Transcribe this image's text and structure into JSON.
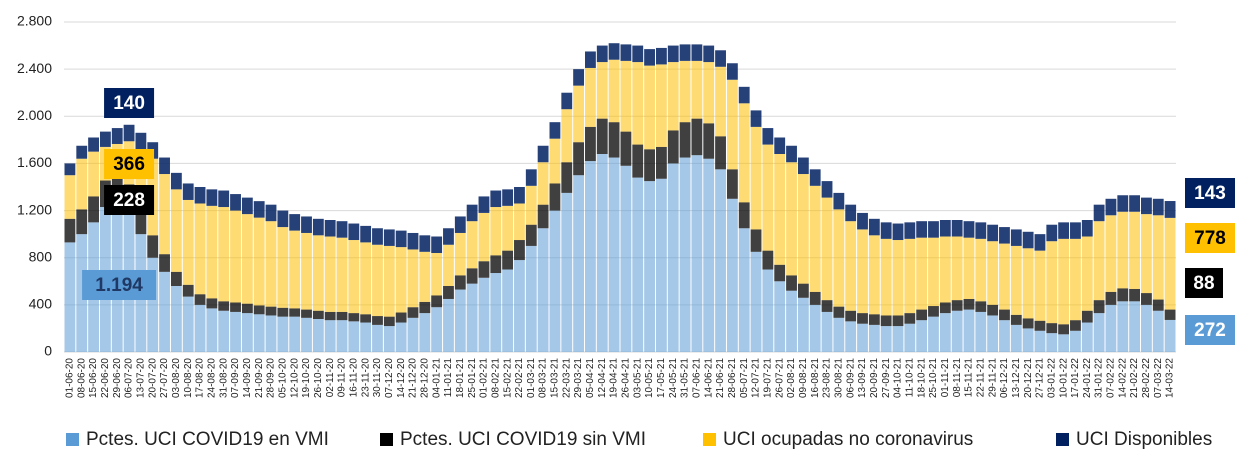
{
  "chart_data": {
    "type": "stacked-bar",
    "categories": [
      "01-06-20",
      "08-06-20",
      "15-06-20",
      "22-06-20",
      "29-06-20",
      "06-07-20",
      "13-07-20",
      "20-07-20",
      "27-07-20",
      "03-08-20",
      "10-08-20",
      "17-08-20",
      "24-08-20",
      "31-08-20",
      "07-09-20",
      "14-09-20",
      "21-09-20",
      "28-09-20",
      "05-10-20",
      "12-10-20",
      "19-10-20",
      "26-10-20",
      "02-11-20",
      "09-11-20",
      "16-11-20",
      "23-11-20",
      "30-11-20",
      "07-12-20",
      "14-12-20",
      "21-12-20",
      "28-12-20",
      "04-01-21",
      "11-01-21",
      "18-01-21",
      "25-01-21",
      "01-02-21",
      "08-02-21",
      "15-02-21",
      "22-02-21",
      "01-03-21",
      "08-03-21",
      "15-03-21",
      "22-03-21",
      "29-03-21",
      "05-04-21",
      "12-04-21",
      "19-04-21",
      "26-04-21",
      "03-05-21",
      "10-05-21",
      "17-05-21",
      "24-05-21",
      "31-05-21",
      "07-06-21",
      "14-06-21",
      "21-06-21",
      "28-06-21",
      "05-07-21",
      "12-07-21",
      "19-07-21",
      "26-07-21",
      "02-08-21",
      "09-08-21",
      "16-08-21",
      "23-08-21",
      "30-08-21",
      "06-09-21",
      "13-09-21",
      "20-09-21",
      "27-09-21",
      "04-10-21",
      "11-10-21",
      "18-10-21",
      "25-10-21",
      "01-11-21",
      "08-11-21",
      "15-11-21",
      "22-11-21",
      "29-11-21",
      "06-12-21",
      "13-12-21",
      "20-12-21",
      "27-12-21",
      "03-01-22",
      "10-01-22",
      "17-01-22",
      "24-01-22",
      "31-01-22",
      "07-02-22",
      "14-02-22",
      "21-02-22",
      "28-02-22",
      "07-03-22",
      "14-03-22"
    ],
    "series": [
      {
        "name": "Pctes. UCI COVID19 en VMI",
        "color": "#5b9bd5",
        "values": [
          930,
          1000,
          1100,
          1230,
          1280,
          1194,
          1000,
          800,
          680,
          560,
          470,
          400,
          370,
          350,
          340,
          330,
          320,
          310,
          300,
          300,
          290,
          280,
          270,
          270,
          260,
          250,
          230,
          220,
          250,
          290,
          330,
          380,
          450,
          530,
          580,
          630,
          670,
          700,
          780,
          900,
          1050,
          1200,
          1350,
          1500,
          1620,
          1680,
          1650,
          1580,
          1480,
          1450,
          1470,
          1600,
          1650,
          1670,
          1640,
          1550,
          1300,
          1050,
          850,
          700,
          600,
          520,
          460,
          400,
          340,
          290,
          260,
          240,
          230,
          220,
          220,
          240,
          270,
          300,
          330,
          350,
          360,
          340,
          310,
          270,
          230,
          200,
          180,
          160,
          150,
          180,
          250,
          330,
          400,
          430,
          430,
          400,
          350,
          272
        ],
        "value_labels": [
          null,
          null,
          null,
          null,
          null,
          "1.194",
          null,
          null,
          null,
          null,
          null,
          null,
          null,
          null,
          null,
          null,
          null,
          null,
          null,
          null,
          null,
          null,
          null,
          null,
          null,
          null,
          null,
          null,
          null,
          null,
          null,
          null,
          null,
          null,
          null,
          null,
          null,
          null,
          null,
          null,
          null,
          null,
          null,
          null,
          null,
          null,
          null,
          null,
          null,
          null,
          null,
          null,
          null,
          null,
          null,
          null,
          null,
          null,
          null,
          null,
          null,
          null,
          null,
          null,
          null,
          null,
          null,
          null,
          null,
          null,
          null,
          null,
          null,
          null,
          null,
          null,
          null,
          null,
          null,
          null,
          null,
          null,
          null,
          null,
          null,
          null,
          null,
          null,
          null,
          null,
          null,
          null,
          null,
          "272"
        ]
      },
      {
        "name": "Pctes. UCI COVID19 sin VMI",
        "color": "#000000",
        "values": [
          200,
          210,
          220,
          225,
          230,
          228,
          210,
          190,
          150,
          120,
          100,
          90,
          85,
          80,
          80,
          80,
          75,
          75,
          75,
          70,
          70,
          70,
          70,
          70,
          70,
          70,
          75,
          80,
          85,
          90,
          95,
          100,
          110,
          120,
          130,
          140,
          150,
          160,
          170,
          180,
          200,
          230,
          260,
          280,
          290,
          300,
          300,
          290,
          280,
          270,
          270,
          280,
          300,
          310,
          300,
          280,
          250,
          220,
          190,
          160,
          140,
          130,
          120,
          110,
          100,
          95,
          90,
          90,
          90,
          90,
          90,
          90,
          90,
          90,
          90,
          90,
          90,
          90,
          90,
          90,
          85,
          85,
          85,
          85,
          85,
          90,
          100,
          110,
          110,
          110,
          105,
          100,
          95,
          88
        ],
        "value_labels": [
          null,
          null,
          null,
          null,
          null,
          "228",
          null,
          null,
          null,
          null,
          null,
          null,
          null,
          null,
          null,
          null,
          null,
          null,
          null,
          null,
          null,
          null,
          null,
          null,
          null,
          null,
          null,
          null,
          null,
          null,
          null,
          null,
          null,
          null,
          null,
          null,
          null,
          null,
          null,
          null,
          null,
          null,
          null,
          null,
          null,
          null,
          null,
          null,
          null,
          null,
          null,
          null,
          null,
          null,
          null,
          null,
          null,
          null,
          null,
          null,
          null,
          null,
          null,
          null,
          null,
          null,
          null,
          null,
          null,
          null,
          null,
          null,
          null,
          null,
          null,
          null,
          null,
          null,
          null,
          null,
          null,
          null,
          null,
          null,
          null,
          null,
          null,
          null,
          null,
          null,
          null,
          null,
          null,
          "88"
        ]
      },
      {
        "name": "UCI ocupadas no coronavirus",
        "color": "#ffc000",
        "values": [
          370,
          430,
          380,
          285,
          255,
          366,
          510,
          650,
          680,
          700,
          720,
          770,
          785,
          800,
          780,
          760,
          745,
          725,
          685,
          660,
          650,
          640,
          640,
          630,
          620,
          610,
          605,
          600,
          555,
          490,
          425,
          360,
          350,
          360,
          400,
          410,
          410,
          380,
          310,
          330,
          360,
          380,
          450,
          480,
          500,
          480,
          530,
          600,
          700,
          710,
          700,
          580,
          520,
          490,
          520,
          590,
          760,
          840,
          870,
          900,
          940,
          960,
          930,
          900,
          870,
          825,
          760,
          710,
          670,
          650,
          640,
          630,
          610,
          580,
          560,
          540,
          520,
          530,
          540,
          560,
          585,
          595,
          595,
          695,
          725,
          690,
          630,
          670,
          650,
          650,
          655,
          670,
          715,
          778
        ],
        "value_labels": [
          null,
          null,
          null,
          null,
          null,
          "366",
          null,
          null,
          null,
          null,
          null,
          null,
          null,
          null,
          null,
          null,
          null,
          null,
          null,
          null,
          null,
          null,
          null,
          null,
          null,
          null,
          null,
          null,
          null,
          null,
          null,
          null,
          null,
          null,
          null,
          null,
          null,
          null,
          null,
          null,
          null,
          null,
          null,
          null,
          null,
          null,
          null,
          null,
          null,
          null,
          null,
          null,
          null,
          null,
          null,
          null,
          null,
          null,
          null,
          null,
          null,
          null,
          null,
          null,
          null,
          null,
          null,
          null,
          null,
          null,
          null,
          null,
          null,
          null,
          null,
          null,
          null,
          null,
          null,
          null,
          null,
          null,
          null,
          null,
          null,
          null,
          null,
          null,
          null,
          null,
          null,
          null,
          null,
          "778"
        ]
      },
      {
        "name": "UCI Disponibles",
        "color": "#002060",
        "values": [
          100,
          110,
          120,
          130,
          135,
          140,
          140,
          140,
          140,
          140,
          140,
          140,
          140,
          140,
          140,
          140,
          140,
          140,
          140,
          140,
          140,
          140,
          140,
          140,
          140,
          140,
          140,
          140,
          140,
          140,
          140,
          140,
          140,
          140,
          140,
          140,
          140,
          140,
          140,
          140,
          140,
          140,
          140,
          140,
          140,
          140,
          140,
          140,
          140,
          140,
          140,
          140,
          140,
          140,
          140,
          140,
          140,
          140,
          140,
          140,
          140,
          140,
          140,
          140,
          140,
          140,
          140,
          140,
          140,
          140,
          140,
          140,
          140,
          140,
          140,
          140,
          140,
          140,
          140,
          140,
          140,
          140,
          140,
          140,
          140,
          140,
          140,
          140,
          140,
          140,
          140,
          140,
          140,
          143
        ],
        "value_labels": [
          null,
          null,
          null,
          null,
          null,
          "140",
          null,
          null,
          null,
          null,
          null,
          null,
          null,
          null,
          null,
          null,
          null,
          null,
          null,
          null,
          null,
          null,
          null,
          null,
          null,
          null,
          null,
          null,
          null,
          null,
          null,
          null,
          null,
          null,
          null,
          null,
          null,
          null,
          null,
          null,
          null,
          null,
          null,
          null,
          null,
          null,
          null,
          null,
          null,
          null,
          null,
          null,
          null,
          null,
          null,
          null,
          null,
          null,
          null,
          null,
          null,
          null,
          null,
          null,
          null,
          null,
          null,
          null,
          null,
          null,
          null,
          null,
          null,
          null,
          null,
          null,
          null,
          null,
          null,
          null,
          null,
          null,
          null,
          null,
          null,
          null,
          null,
          null,
          null,
          null,
          null,
          null,
          null,
          "143"
        ]
      }
    ],
    "ylim": [
      0,
      2800
    ],
    "yticks": [
      0,
      400,
      800,
      {
        "value": 1200,
        "label": "1.200"
      },
      {
        "value": 1600,
        "label": "1.600"
      },
      {
        "value": 2000,
        "label": "2.000"
      },
      {
        "value": 2400,
        "label": "2.400"
      },
      {
        "value": 2800,
        "label": "2.800"
      }
    ],
    "grid": true,
    "legend": "bottom"
  }
}
